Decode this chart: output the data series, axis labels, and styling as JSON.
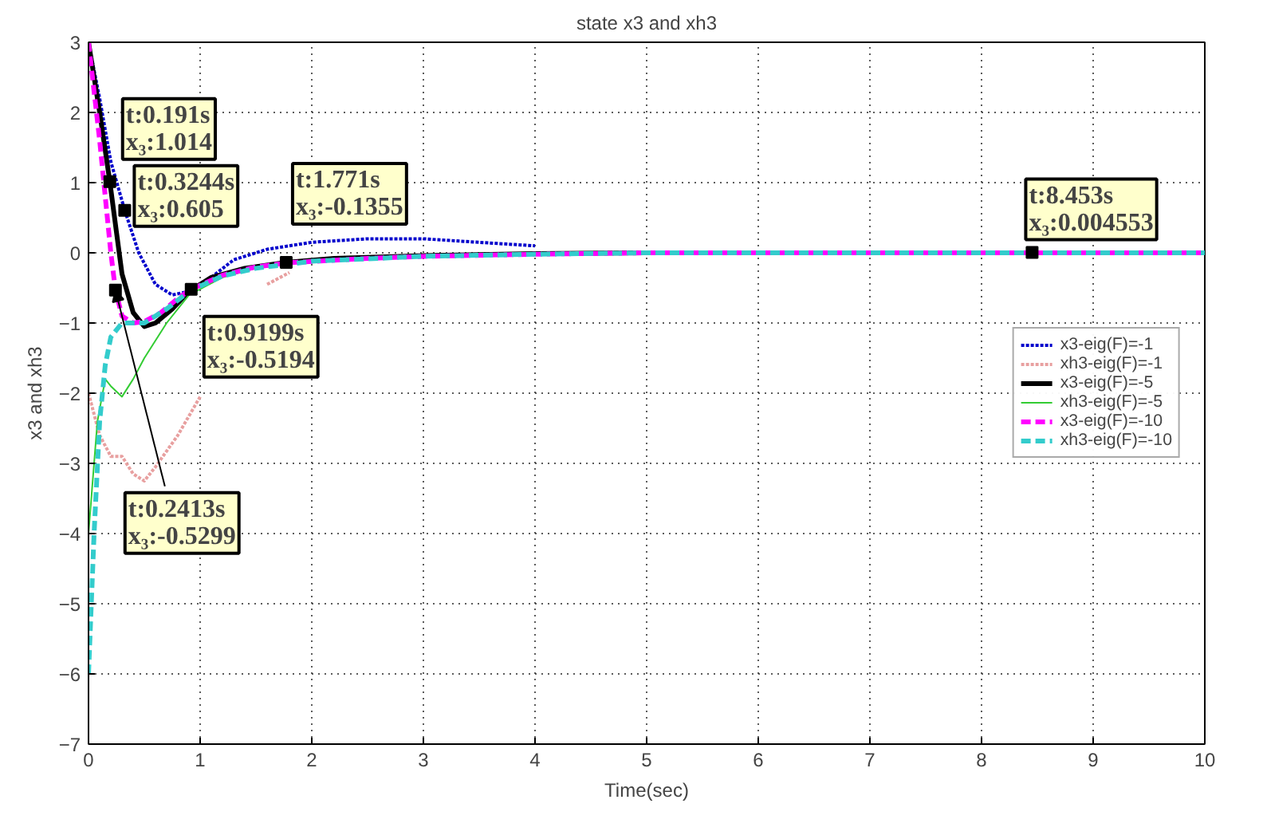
{
  "chart_data": {
    "type": "line",
    "title": "state x3 and xh3",
    "xlabel": "Time(sec)",
    "ylabel": "x3 and xh3",
    "xlim": [
      0,
      10
    ],
    "ylim": [
      -7,
      3
    ],
    "xticks": [
      0,
      1,
      2,
      3,
      4,
      5,
      6,
      7,
      8,
      9,
      10
    ],
    "yticks": [
      -7,
      -6,
      -5,
      -4,
      -3,
      -2,
      -1,
      0,
      1,
      2,
      3
    ],
    "grid": true,
    "legend": "right",
    "series": [
      {
        "name": "x3-eig(F)=-1",
        "color": "#0000cc",
        "line_style": "dotted",
        "x": [
          0,
          0.1,
          0.2,
          0.3244,
          0.45,
          0.6,
          0.75,
          0.9,
          1.1,
          1.3,
          1.6,
          2,
          2.5,
          3,
          3.5,
          4
        ],
        "values": [
          3,
          2.2,
          1.3,
          0.605,
          0.0,
          -0.45,
          -0.6,
          -0.55,
          -0.35,
          -0.1,
          0.05,
          0.15,
          0.2,
          0.2,
          0.15,
          0.1
        ]
      },
      {
        "name": "xh3-eig(F)=-1",
        "color": "#e8a0a0",
        "line_style": "dotted",
        "x": [
          0,
          0.1,
          0.2,
          0.3,
          0.4,
          0.5,
          0.6,
          0.8,
          1,
          1.15,
          1.35,
          1.6,
          1.8
        ],
        "values": [
          -2,
          -2.6,
          -2.9,
          -2.9,
          -3.15,
          -3.25,
          -3.05,
          -2.6,
          -2.05,
          null,
          null,
          -0.45,
          -0.28
        ]
      },
      {
        "name": "x3-eig(F)=-5",
        "color": "#000000",
        "line_style": "solid",
        "x": [
          0,
          0.1,
          0.191,
          0.25,
          0.3,
          0.4,
          0.5,
          0.6,
          0.75,
          0.9,
          1.1,
          1.4,
          1.771,
          2.2,
          3,
          4,
          5,
          7,
          10
        ],
        "values": [
          3,
          2,
          1.014,
          0.3,
          -0.3,
          -0.85,
          -1.05,
          -1.0,
          -0.8,
          -0.55,
          -0.35,
          -0.22,
          -0.1355,
          -0.08,
          -0.04,
          -0.01,
          0,
          0,
          0
        ]
      },
      {
        "name": "xh3-eig(F)=-5",
        "color": "#33cc33",
        "line_style": "solid",
        "x": [
          0,
          0.08,
          0.15,
          0.2,
          0.3,
          0.4,
          0.5,
          0.7,
          0.9,
          1.2,
          1.5
        ],
        "values": [
          -4,
          -2.4,
          -1.8,
          -1.9,
          -2.05,
          -1.8,
          -1.5,
          -1.0,
          -0.6,
          -0.35,
          -0.22
        ]
      },
      {
        "name": "x3-eig(F)=-10",
        "color": "#ff00ff",
        "line_style": "dashed",
        "x": [
          0,
          0.1,
          0.2,
          0.2413,
          0.3,
          0.4,
          0.5,
          0.65,
          0.8,
          0.9199,
          1.2,
          1.5,
          1.8,
          2.5,
          3,
          4,
          5,
          7,
          10
        ],
        "values": [
          3,
          1.6,
          0.0,
          -0.5299,
          -0.9,
          -1.0,
          -0.98,
          -0.85,
          -0.65,
          -0.5194,
          -0.32,
          -0.2,
          -0.14,
          -0.08,
          -0.05,
          -0.02,
          0,
          0,
          0
        ]
      },
      {
        "name": "xh3-eig(F)=-10",
        "color": "#33cccc",
        "line_style": "dashed",
        "x": [
          0,
          0.05,
          0.1,
          0.15,
          0.2,
          0.3,
          0.4,
          0.5,
          0.7,
          0.9,
          1.2,
          1.5,
          2,
          3,
          4,
          5,
          7,
          10
        ],
        "values": [
          -6,
          -4,
          -2.4,
          -1.6,
          -1.2,
          -1.0,
          -1.0,
          -1.0,
          -0.8,
          -0.55,
          -0.33,
          -0.22,
          -0.12,
          -0.05,
          -0.02,
          0,
          0,
          0
        ]
      }
    ],
    "annotations": [
      {
        "text": "t:0.191s\nx₃:1.014",
        "x": 0.191,
        "y": 1.014
      },
      {
        "text": "t:0.3244s\nx₃:0.605",
        "x": 0.3244,
        "y": 0.605
      },
      {
        "text": "t:1.771s\nx₃:-0.1355",
        "x": 1.771,
        "y": -0.1355
      },
      {
        "text": "t:0.2413s\nx₃:-0.5299",
        "x": 0.2413,
        "y": -0.5299
      },
      {
        "text": "t:0.9199s\nx₃:-0.5194",
        "x": 0.9199,
        "y": -0.5194
      },
      {
        "text": "t:8.453s\nx₃:0.004553",
        "x": 8.453,
        "y": 0.004553
      }
    ]
  }
}
